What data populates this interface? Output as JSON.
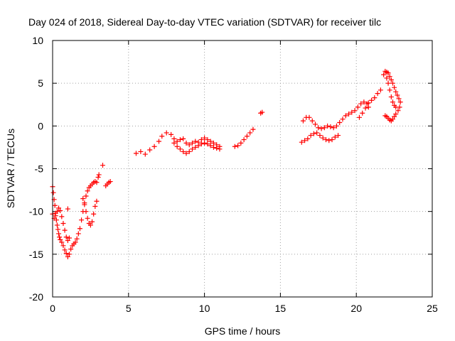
{
  "chart_data": {
    "type": "scatter",
    "title": "Day 024 of 2018, Sidereal Day-to-day VTEC variation (SDTVAR) for receiver tilc",
    "xlabel": "GPS time / hours",
    "ylabel": "SDTVAR / TECUs",
    "xlim": [
      0,
      25
    ],
    "ylim": [
      -20,
      10
    ],
    "xticks": [
      "0",
      "5",
      "10",
      "15",
      "20",
      "25"
    ],
    "yticks": [
      "10",
      "5",
      "0",
      "-5",
      "-10",
      "-15",
      "-20"
    ],
    "grid": true,
    "marker": "+",
    "color": "#ff0000",
    "series": [
      {
        "points": [
          [
            0.0,
            -7.1
          ],
          [
            0.05,
            -7.8
          ],
          [
            0.1,
            -8.6
          ],
          [
            0.15,
            -9.3
          ],
          [
            0.2,
            -10.2
          ],
          [
            0.25,
            -11.0
          ],
          [
            0.3,
            -11.6
          ],
          [
            0.35,
            -12.1
          ],
          [
            0.4,
            -12.6
          ],
          [
            0.45,
            -13.0
          ],
          [
            0.5,
            -13.3
          ],
          [
            0.6,
            -13.6
          ],
          [
            0.7,
            -14.0
          ],
          [
            0.8,
            -14.5
          ],
          [
            0.9,
            -14.9
          ],
          [
            1.0,
            -15.3
          ],
          [
            1.1,
            -15.0
          ],
          [
            1.2,
            -14.4
          ],
          [
            1.3,
            -14.0
          ],
          [
            1.4,
            -13.8
          ],
          [
            1.5,
            -13.6
          ],
          [
            1.6,
            -13.2
          ],
          [
            1.7,
            -12.6
          ],
          [
            1.8,
            -12.0
          ],
          [
            1.9,
            -11.0
          ],
          [
            2.0,
            -10.0
          ],
          [
            2.1,
            -9.0
          ],
          [
            2.2,
            -8.2
          ],
          [
            2.3,
            -7.6
          ],
          [
            2.4,
            -7.2
          ],
          [
            2.5,
            -7.0
          ],
          [
            2.6,
            -6.8
          ],
          [
            2.7,
            -6.6
          ],
          [
            2.8,
            -6.5
          ],
          [
            2.9,
            -6.6
          ]
        ]
      },
      {
        "points": [
          [
            0.0,
            -10.3
          ],
          [
            0.1,
            -10.8
          ],
          [
            0.2,
            -10.5
          ],
          [
            0.3,
            -10.0
          ],
          [
            0.4,
            -9.6
          ],
          [
            0.5,
            -9.9
          ],
          [
            0.6,
            -10.6
          ],
          [
            0.7,
            -11.4
          ],
          [
            0.8,
            -12.2
          ],
          [
            0.9,
            -13.0
          ],
          [
            1.0,
            -13.4
          ],
          [
            1.1,
            -13.1
          ]
        ]
      },
      {
        "points": [
          [
            1.0,
            -9.7
          ],
          [
            2.0,
            -8.5
          ],
          [
            2.1,
            -9.2
          ],
          [
            2.2,
            -10.0
          ],
          [
            2.3,
            -10.8
          ],
          [
            2.4,
            -11.4
          ],
          [
            2.5,
            -11.6
          ],
          [
            2.6,
            -11.2
          ],
          [
            2.7,
            -10.3
          ],
          [
            2.8,
            -9.4
          ],
          [
            2.9,
            -8.8
          ]
        ]
      },
      {
        "points": [
          [
            3.0,
            -6.0
          ],
          [
            3.05,
            -5.7
          ],
          [
            3.3,
            -4.6
          ],
          [
            3.5,
            -7.0
          ],
          [
            3.6,
            -6.8
          ],
          [
            3.7,
            -6.6
          ],
          [
            3.8,
            -6.5
          ]
        ]
      },
      {
        "points": [
          [
            5.5,
            -3.2
          ],
          [
            5.8,
            -3.0
          ],
          [
            6.1,
            -3.3
          ],
          [
            6.4,
            -2.8
          ],
          [
            6.7,
            -2.4
          ],
          [
            7.0,
            -1.8
          ],
          [
            7.2,
            -1.2
          ],
          [
            7.5,
            -0.8
          ],
          [
            7.8,
            -1.0
          ],
          [
            8.0,
            -1.5
          ],
          [
            8.2,
            -1.8
          ],
          [
            8.4,
            -1.6
          ],
          [
            8.6,
            -1.5
          ],
          [
            8.8,
            -2.0
          ],
          [
            9.0,
            -2.2
          ],
          [
            9.2,
            -2.0
          ],
          [
            9.4,
            -1.8
          ],
          [
            9.6,
            -1.9
          ],
          [
            9.8,
            -1.6
          ],
          [
            10.0,
            -1.4
          ],
          [
            10.2,
            -1.6
          ],
          [
            10.4,
            -1.8
          ],
          [
            10.6,
            -2.0
          ],
          [
            10.8,
            -2.2
          ],
          [
            11.0,
            -2.4
          ]
        ]
      },
      {
        "points": [
          [
            8.0,
            -2.0
          ],
          [
            8.2,
            -2.4
          ],
          [
            8.4,
            -2.7
          ],
          [
            8.6,
            -3.0
          ],
          [
            8.8,
            -3.2
          ],
          [
            9.0,
            -3.0
          ],
          [
            9.2,
            -2.7
          ],
          [
            9.4,
            -2.5
          ],
          [
            9.6,
            -2.3
          ],
          [
            9.8,
            -2.1
          ],
          [
            10.0,
            -2.0
          ],
          [
            10.2,
            -2.1
          ],
          [
            10.4,
            -2.3
          ],
          [
            10.6,
            -2.5
          ],
          [
            10.8,
            -2.6
          ],
          [
            11.0,
            -2.7
          ]
        ]
      },
      {
        "points": [
          [
            12.0,
            -2.4
          ],
          [
            12.2,
            -2.3
          ],
          [
            12.4,
            -2.0
          ],
          [
            12.6,
            -1.6
          ],
          [
            12.8,
            -1.2
          ],
          [
            13.0,
            -0.8
          ],
          [
            13.2,
            -0.4
          ],
          [
            13.7,
            1.5
          ],
          [
            13.8,
            1.6
          ]
        ]
      },
      {
        "points": [
          [
            16.5,
            0.6
          ],
          [
            16.7,
            1.0
          ],
          [
            16.9,
            1.0
          ],
          [
            17.1,
            0.6
          ],
          [
            17.3,
            0.2
          ],
          [
            17.5,
            -0.2
          ],
          [
            17.7,
            -0.3
          ],
          [
            17.9,
            -0.2
          ],
          [
            18.1,
            0.0
          ],
          [
            18.3,
            -0.1
          ],
          [
            18.5,
            -0.2
          ],
          [
            18.7,
            0.0
          ],
          [
            18.9,
            0.4
          ],
          [
            19.1,
            0.8
          ],
          [
            19.3,
            1.2
          ],
          [
            19.5,
            1.4
          ],
          [
            19.7,
            1.6
          ],
          [
            19.9,
            1.8
          ],
          [
            20.1,
            2.2
          ],
          [
            20.3,
            2.6
          ],
          [
            20.5,
            2.8
          ],
          [
            20.7,
            2.6
          ],
          [
            20.8,
            2.2
          ]
        ]
      },
      {
        "points": [
          [
            16.4,
            -1.9
          ],
          [
            16.6,
            -1.7
          ],
          [
            16.8,
            -1.5
          ],
          [
            17.0,
            -1.1
          ],
          [
            17.2,
            -0.9
          ],
          [
            17.4,
            -0.8
          ],
          [
            17.6,
            -1.1
          ],
          [
            17.8,
            -1.4
          ],
          [
            18.0,
            -1.6
          ],
          [
            18.2,
            -1.7
          ],
          [
            18.4,
            -1.6
          ],
          [
            18.6,
            -1.3
          ],
          [
            18.8,
            -1.1
          ]
        ]
      },
      {
        "points": [
          [
            20.2,
            1.0
          ],
          [
            20.4,
            1.5
          ],
          [
            20.6,
            2.1
          ],
          [
            20.8,
            2.7
          ],
          [
            21.0,
            3.0
          ],
          [
            21.2,
            3.3
          ],
          [
            21.4,
            3.8
          ],
          [
            21.6,
            4.2
          ]
        ]
      },
      {
        "points": [
          [
            21.8,
            6.0
          ],
          [
            21.9,
            6.4
          ],
          [
            22.0,
            6.3
          ],
          [
            22.1,
            6.2
          ],
          [
            22.2,
            5.8
          ],
          [
            22.3,
            5.4
          ],
          [
            22.4,
            5.0
          ],
          [
            22.5,
            4.5
          ],
          [
            22.6,
            4.0
          ],
          [
            22.7,
            3.6
          ],
          [
            22.8,
            3.2
          ],
          [
            22.9,
            2.8
          ],
          [
            22.85,
            2.2
          ],
          [
            22.75,
            1.8
          ],
          [
            22.6,
            1.4
          ],
          [
            22.5,
            1.1
          ],
          [
            22.4,
            0.8
          ],
          [
            22.3,
            0.6
          ],
          [
            22.2,
            0.7
          ],
          [
            22.1,
            0.9
          ],
          [
            22.0,
            1.1
          ],
          [
            21.9,
            1.2
          ]
        ]
      },
      {
        "points": [
          [
            22.0,
            5.6
          ],
          [
            22.1,
            5.0
          ],
          [
            22.2,
            4.2
          ],
          [
            22.3,
            3.4
          ],
          [
            22.4,
            2.8
          ],
          [
            22.5,
            2.4
          ],
          [
            22.6,
            2.2
          ]
        ]
      }
    ]
  }
}
